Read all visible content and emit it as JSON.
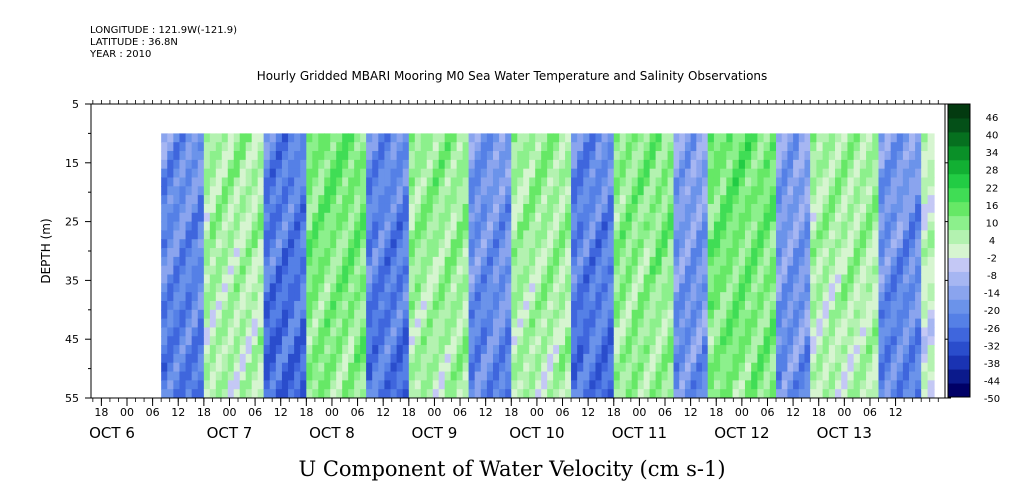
{
  "header": {
    "longitude": "LONGITUDE : 121.9W(-121.9)",
    "latitude": "LATITUDE : 36.8N",
    "year": "YEAR : 2010"
  },
  "chart_data": {
    "type": "heatmap",
    "title": "Hourly Gridded MBARI Mooring M0 Sea Water Temperature and Salinity Observations",
    "xlabel": "U Component of Water Velocity (cm s-1)",
    "ylabel": "DEPTH (m)",
    "y_ticks": [
      "5",
      "15",
      "25",
      "35",
      "45",
      "55"
    ],
    "y_range": [
      5,
      55
    ],
    "y_inverted": true,
    "data_depth_range": [
      10,
      55
    ],
    "x_range_hours": [
      0,
      189
    ],
    "hour_ticks": [
      "18",
      "00",
      "06",
      "12",
      "18",
      "00",
      "06",
      "12",
      "18",
      "00",
      "06",
      "12",
      "18",
      "00",
      "06",
      "12",
      "18",
      "00",
      "06",
      "12",
      "18",
      "00",
      "06",
      "12",
      "18",
      "00",
      "06",
      "12",
      "18",
      "00",
      "06",
      "12"
    ],
    "date_labels": [
      "OCT  6",
      "OCT  7",
      "OCT  8",
      "OCT  9",
      "OCT 10",
      "OCT 11",
      "OCT 12",
      "OCT 13"
    ],
    "colorbar": {
      "tick_labels": [
        "46",
        "40",
        "34",
        "28",
        "22",
        "16",
        "10",
        "4",
        "-2",
        "-8",
        "-14",
        "-20",
        "-26",
        "-32",
        "-38",
        "-44",
        "-50"
      ],
      "min": -50,
      "max": 52,
      "colors": [
        "#000066",
        "#0b1a8c",
        "#1a33b3",
        "#2a4dcc",
        "#3f66dd",
        "#5580e6",
        "#6b93ea",
        "#8aa4ee",
        "#a6b6f2",
        "#c4c8f5",
        "#d6f5d0",
        "#b3f2b0",
        "#8cf08c",
        "#66e866",
        "#40dd55",
        "#22cc44",
        "#12b033",
        "#0a9028",
        "#06701f",
        "#045018",
        "#033a10"
      ]
    },
    "bands": [
      {
        "start": 8,
        "end": 18,
        "value": -18
      },
      {
        "start": 18,
        "end": 32,
        "value": 8
      },
      {
        "start": 32,
        "end": 42,
        "value": -22
      },
      {
        "start": 42,
        "end": 56,
        "value": 14
      },
      {
        "start": 56,
        "end": 66,
        "value": -20
      },
      {
        "start": 66,
        "end": 80,
        "value": 10
      },
      {
        "start": 80,
        "end": 90,
        "value": -16
      },
      {
        "start": 90,
        "end": 104,
        "value": 9
      },
      {
        "start": 104,
        "end": 114,
        "value": -20
      },
      {
        "start": 114,
        "end": 128,
        "value": 12
      },
      {
        "start": 128,
        "end": 136,
        "value": -14
      },
      {
        "start": 136,
        "end": 152,
        "value": 15
      },
      {
        "start": 152,
        "end": 160,
        "value": -14
      },
      {
        "start": 160,
        "end": 176,
        "value": 8
      },
      {
        "start": 176,
        "end": 186,
        "value": -16
      },
      {
        "start": 186,
        "end": 189,
        "value": 4
      }
    ]
  }
}
